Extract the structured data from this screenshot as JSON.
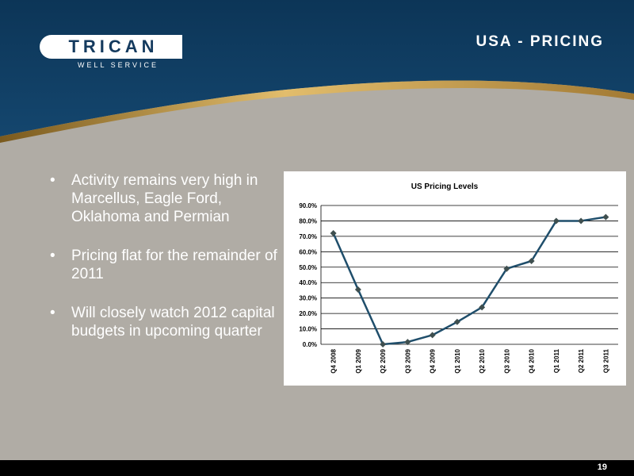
{
  "header": {
    "logo_text": "TRICAN",
    "logo_subtext": "WELL   SERVICE",
    "title": "USA - PRICING"
  },
  "bullets": [
    "Activity remains very high in Marcellus, Eagle Ford, Oklahoma and Permian",
    "Pricing flat for the remainder of 2011",
    "Will closely watch 2012 capital budgets in upcoming quarter"
  ],
  "chart_data": {
    "type": "line",
    "title": "US Pricing Levels",
    "xlabel": "",
    "ylabel": "",
    "categories": [
      "Q4 2008",
      "Q1 2009",
      "Q2 2009",
      "Q3 2009",
      "Q4 2009",
      "Q1 2010",
      "Q2 2010",
      "Q3 2010",
      "Q4 2010",
      "Q1 2011",
      "Q2 2011",
      "Q3 2011"
    ],
    "series": [
      {
        "values": [
          72.0,
          35.5,
          0.0,
          1.5,
          6.0,
          14.5,
          24.0,
          49.0,
          54.0,
          80.0,
          80.0,
          82.5
        ]
      }
    ],
    "ylim": [
      0,
      90
    ],
    "yticks": [
      0,
      10,
      20,
      30,
      40,
      50,
      60,
      70,
      80,
      90
    ],
    "ytick_labels": [
      "0.0%",
      "10.0%",
      "20.0%",
      "30.0%",
      "40.0%",
      "50.0%",
      "60.0%",
      "70.0%",
      "80.0%",
      "90.0%"
    ],
    "grid": true,
    "legend": "none",
    "line_color": "#1f4e6b",
    "marker_color": "#3f4f4f"
  },
  "footer": {
    "page_number": "19"
  },
  "colors": {
    "header_blue": "#0f3a5c",
    "swoosh": "#c9a04e",
    "body_bg": "#b0aca5",
    "footer_bg": "#000000"
  }
}
